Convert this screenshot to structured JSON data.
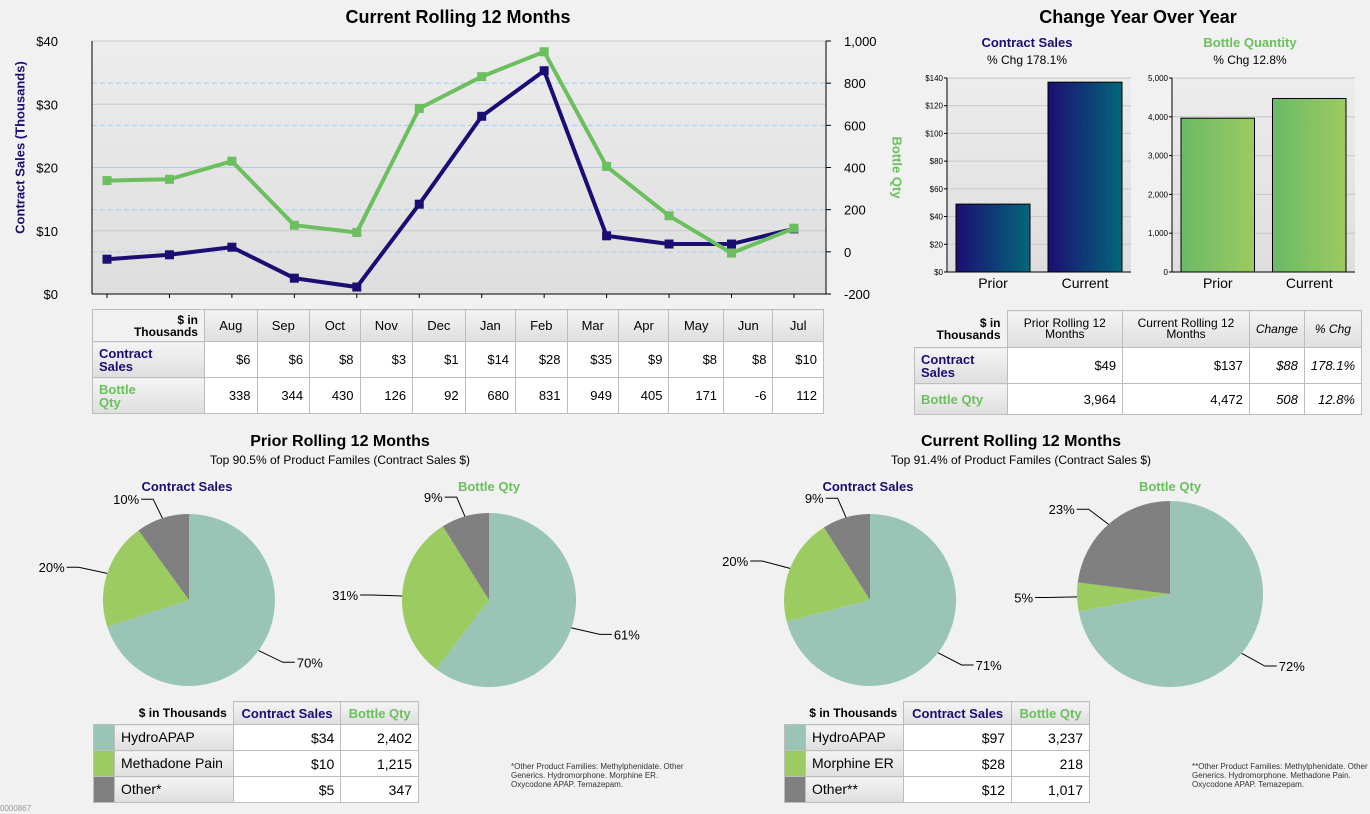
{
  "colors": {
    "contract_sales": "#1b0e72",
    "bottle_qty": "#6cbf5e",
    "hydroapap": "#9ac4b6",
    "second": "#9ccb62",
    "other": "#808080"
  },
  "line_section": {
    "title": "Current Rolling 12 Months",
    "table_corner": [
      "$ in",
      "Thousands"
    ],
    "row_labels": [
      "Contract",
      "Sales",
      "Bottle",
      "Qty"
    ],
    "months": [
      "Aug",
      "Sep",
      "Oct",
      "Nov",
      "Dec",
      "Jan",
      "Feb",
      "Mar",
      "Apr",
      "May",
      "Jun",
      "Jul"
    ],
    "contract_sales_row": [
      "$6",
      "$6",
      "$8",
      "$3",
      "$1",
      "$14",
      "$28",
      "$35",
      "$9",
      "$8",
      "$8",
      "$10"
    ],
    "bottle_qty_row": [
      "338",
      "344",
      "430",
      "126",
      "92",
      "680",
      "831",
      "949",
      "405",
      "171",
      "-6",
      "112"
    ]
  },
  "yoy_section": {
    "title": "Change Year Over Year",
    "cs_title": "Contract Sales",
    "cs_sub": "% Chg 178.1%",
    "bq_title": "Bottle Quantity",
    "bq_sub": "% Chg 12.8%",
    "table": {
      "corner": [
        "$ in",
        "Thousands"
      ],
      "headers": [
        "Prior Rolling 12 Months",
        "Current Rolling 12 Months",
        "Change",
        "% Chg"
      ],
      "rows": [
        {
          "label": "Contract Sales",
          "values": [
            "$49",
            "$137",
            "$88",
            "178.1%"
          ]
        },
        {
          "label": "Bottle Qty",
          "values": [
            "3,964",
            "4,472",
            "508",
            "12.8%"
          ]
        }
      ]
    }
  },
  "prior_section": {
    "title": "Prior Rolling 12 Months",
    "subtitle": "Top 90.5% of Product Familes (Contract Sales $)",
    "cs_label": "Contract Sales",
    "bq_label": "Bottle Qty",
    "table": {
      "corner": "$ in Thousands",
      "headers": [
        "Contract Sales",
        "Bottle Qty"
      ],
      "rows": [
        {
          "name": "HydroAPAP",
          "cs": "$34",
          "bq": "2,402"
        },
        {
          "name": "Methadone Pain",
          "cs": "$10",
          "bq": "1,215"
        },
        {
          "name": "Other*",
          "cs": "$5",
          "bq": "347"
        }
      ]
    },
    "footnote": "*Other Product Families: Methylphenidate. Other Generics. Hydromorphone. Morphine ER. Oxycodone APAP. Temazepam."
  },
  "current_section": {
    "title": "Current Rolling 12 Months",
    "subtitle": "Top 91.4% of Product Familes (Contract Sales $)",
    "cs_label": "Contract Sales",
    "bq_label": "Bottle Qty",
    "table": {
      "corner": "$ in Thousands",
      "headers": [
        "Contract Sales",
        "Bottle Qty"
      ],
      "rows": [
        {
          "name": "HydroAPAP",
          "cs": "$97",
          "bq": "3,237"
        },
        {
          "name": "Morphine ER",
          "cs": "$28",
          "bq": "218"
        },
        {
          "name": "Other**",
          "cs": "$12",
          "bq": "1,017"
        }
      ]
    },
    "footnote": "**Other Product Families: Methylphenidate. Other Generics. Hydromorphone. Methadone Pain. Oxycodone APAP. Temazepam."
  },
  "page_id": "0000867",
  "chart_data": [
    {
      "type": "line",
      "title": "Current Rolling 12 Months",
      "ylabel": "Contract Sales (Thousands)",
      "y2label": "Bottle Qty",
      "categories": [
        "Aug",
        "Sep",
        "Oct",
        "Nov",
        "Dec",
        "Jan",
        "Feb",
        "Mar",
        "Apr",
        "May",
        "Jun",
        "Jul"
      ],
      "ylim": [
        0,
        40
      ],
      "yticks": [
        "$0",
        "$10",
        "$20",
        "$30",
        "$40"
      ],
      "y2lim": [
        -200,
        1000
      ],
      "y2ticks": [
        "-200",
        "0",
        "200",
        "400",
        "600",
        "800",
        "1,000"
      ],
      "series": [
        {
          "name": "Contract Sales",
          "axis": "left",
          "values": [
            5.5,
            6.2,
            7.4,
            2.5,
            1.1,
            14.2,
            28.1,
            35.3,
            9.2,
            7.9,
            7.9,
            10.3
          ]
        },
        {
          "name": "Bottle Qty",
          "axis": "right",
          "values": [
            338,
            344,
            430,
            126,
            92,
            680,
            831,
            949,
            405,
            171,
            -6,
            112
          ]
        }
      ]
    },
    {
      "type": "bar",
      "title": "Contract Sales",
      "categories": [
        "Prior",
        "Current"
      ],
      "values": [
        49,
        137
      ],
      "ylim": [
        0,
        140
      ],
      "yticks": [
        "$0",
        "$20",
        "$40",
        "$60",
        "$80",
        "$100",
        "$120",
        "$140"
      ]
    },
    {
      "type": "bar",
      "title": "Bottle Quantity",
      "categories": [
        "Prior",
        "Current"
      ],
      "values": [
        3964,
        4472
      ],
      "ylim": [
        0,
        5000
      ],
      "yticks": [
        "0",
        "1,000",
        "2,000",
        "3,000",
        "4,000",
        "5,000"
      ]
    },
    {
      "type": "pie",
      "title": "Prior Contract Sales",
      "labels": [
        "HydroAPAP",
        "Methadone Pain",
        "Other*"
      ],
      "values": [
        70,
        20,
        10
      ],
      "data_labels": [
        "70%",
        "20%",
        "10%"
      ]
    },
    {
      "type": "pie",
      "title": "Prior Bottle Qty",
      "labels": [
        "HydroAPAP",
        "Methadone Pain",
        "Other*"
      ],
      "values": [
        61,
        31,
        9
      ],
      "data_labels": [
        "61%",
        "31%",
        "9%"
      ]
    },
    {
      "type": "pie",
      "title": "Current Contract Sales",
      "labels": [
        "HydroAPAP",
        "Morphine ER",
        "Other**"
      ],
      "values": [
        71,
        20,
        9
      ],
      "data_labels": [
        "71%",
        "20%",
        "9%"
      ]
    },
    {
      "type": "pie",
      "title": "Current Bottle Qty",
      "labels": [
        "HydroAPAP",
        "Morphine ER",
        "Other**"
      ],
      "values": [
        72,
        5,
        23
      ],
      "data_labels": [
        "72%",
        "5%",
        "23%"
      ]
    }
  ]
}
